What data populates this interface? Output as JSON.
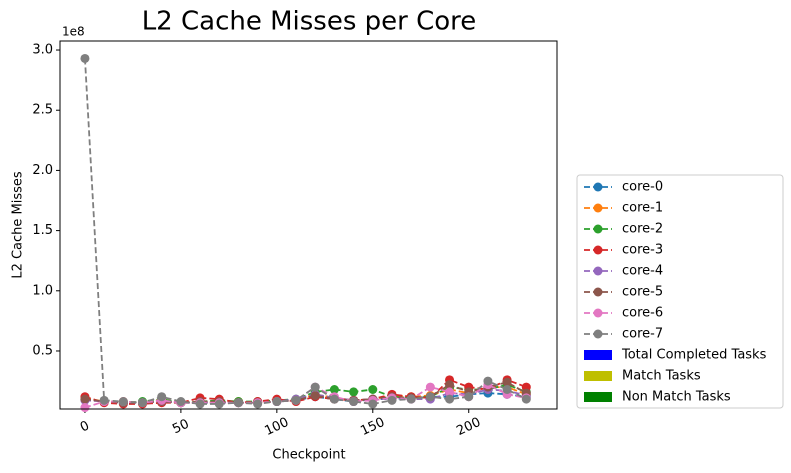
{
  "chart_data": {
    "type": "line",
    "title": "L2 Cache Misses per Core",
    "xlabel": "Checkpoint",
    "ylabel": "L2 Cache Misses",
    "y_offset_label": "1e8",
    "x": [
      0,
      10,
      20,
      30,
      40,
      50,
      60,
      70,
      80,
      90,
      100,
      110,
      120,
      130,
      140,
      150,
      160,
      170,
      180,
      190,
      200,
      210,
      220,
      230
    ],
    "xlim": [
      -13,
      246
    ],
    "xticks": [
      0,
      50,
      100,
      150,
      200
    ],
    "ylim": [
      0.018,
      3.075
    ],
    "yticks": [
      0.5,
      {
        "value": 1,
        "label": "1.0"
      },
      1.5,
      {
        "value": 2,
        "label": "2.0"
      },
      2.5,
      {
        "value": 3,
        "label": "3.0"
      }
    ],
    "series": [
      {
        "name": "core-0",
        "color": "#1f77b4",
        "values": [
          0.1,
          0.08,
          0.07,
          0.07,
          0.09,
          0.07,
          0.07,
          0.07,
          0.07,
          0.07,
          0.08,
          0.09,
          0.12,
          0.1,
          0.08,
          0.1,
          0.1,
          0.11,
          0.12,
          0.12,
          0.14,
          0.15,
          0.14,
          0.12
        ]
      },
      {
        "name": "core-1",
        "color": "#ff7f0e",
        "values": [
          0.11,
          0.08,
          0.08,
          0.07,
          0.1,
          0.07,
          0.07,
          0.08,
          0.08,
          0.07,
          0.09,
          0.09,
          0.14,
          0.11,
          0.09,
          0.1,
          0.13,
          0.12,
          0.13,
          0.18,
          0.15,
          0.2,
          0.2,
          0.14
        ]
      },
      {
        "name": "core-2",
        "color": "#2ca02c",
        "values": [
          0.1,
          0.08,
          0.07,
          0.08,
          0.1,
          0.07,
          0.08,
          0.09,
          0.08,
          0.08,
          0.09,
          0.1,
          0.16,
          0.18,
          0.16,
          0.18,
          0.12,
          0.11,
          0.12,
          0.2,
          0.18,
          0.18,
          0.22,
          0.16
        ]
      },
      {
        "name": "core-3",
        "color": "#d62728",
        "values": [
          0.12,
          0.07,
          0.06,
          0.06,
          0.07,
          0.07,
          0.11,
          0.1,
          0.07,
          0.08,
          0.1,
          0.08,
          0.12,
          0.1,
          0.09,
          0.1,
          0.14,
          0.12,
          0.11,
          0.26,
          0.2,
          0.18,
          0.26,
          0.2
        ]
      },
      {
        "name": "core-4",
        "color": "#9467bd",
        "values": [
          0.09,
          0.08,
          0.07,
          0.07,
          0.08,
          0.07,
          0.07,
          0.07,
          0.07,
          0.07,
          0.08,
          0.1,
          0.14,
          0.11,
          0.09,
          0.1,
          0.11,
          0.1,
          0.1,
          0.15,
          0.14,
          0.18,
          0.17,
          0.13
        ]
      },
      {
        "name": "core-5",
        "color": "#8c564b",
        "values": [
          0.1,
          0.08,
          0.07,
          0.07,
          0.08,
          0.07,
          0.08,
          0.08,
          0.07,
          0.07,
          0.08,
          0.09,
          0.13,
          0.1,
          0.09,
          0.1,
          0.12,
          0.11,
          0.12,
          0.22,
          0.16,
          0.2,
          0.24,
          0.15
        ]
      },
      {
        "name": "core-6",
        "color": "#e377c2",
        "values": [
          0.03,
          0.08,
          0.08,
          0.07,
          0.09,
          0.07,
          0.07,
          0.07,
          0.07,
          0.07,
          0.08,
          0.09,
          0.2,
          0.12,
          0.08,
          0.09,
          0.11,
          0.1,
          0.2,
          0.16,
          0.12,
          0.22,
          0.14,
          0.11
        ]
      },
      {
        "name": "core-7",
        "color": "#7f7f7f",
        "values": [
          2.93,
          0.09,
          0.08,
          0.07,
          0.12,
          0.08,
          0.06,
          0.06,
          0.07,
          0.06,
          0.08,
          0.09,
          0.2,
          0.1,
          0.08,
          0.06,
          0.09,
          0.1,
          0.12,
          0.1,
          0.12,
          0.25,
          0.18,
          0.1
        ]
      }
    ],
    "legend_patches": [
      {
        "name": "Total Completed Tasks",
        "color": "#0000ff"
      },
      {
        "name": "Match Tasks",
        "color": "#bfbf00"
      },
      {
        "name": "Non Match Tasks",
        "color": "#008000"
      }
    ],
    "legend": "outside-right-bottom"
  }
}
